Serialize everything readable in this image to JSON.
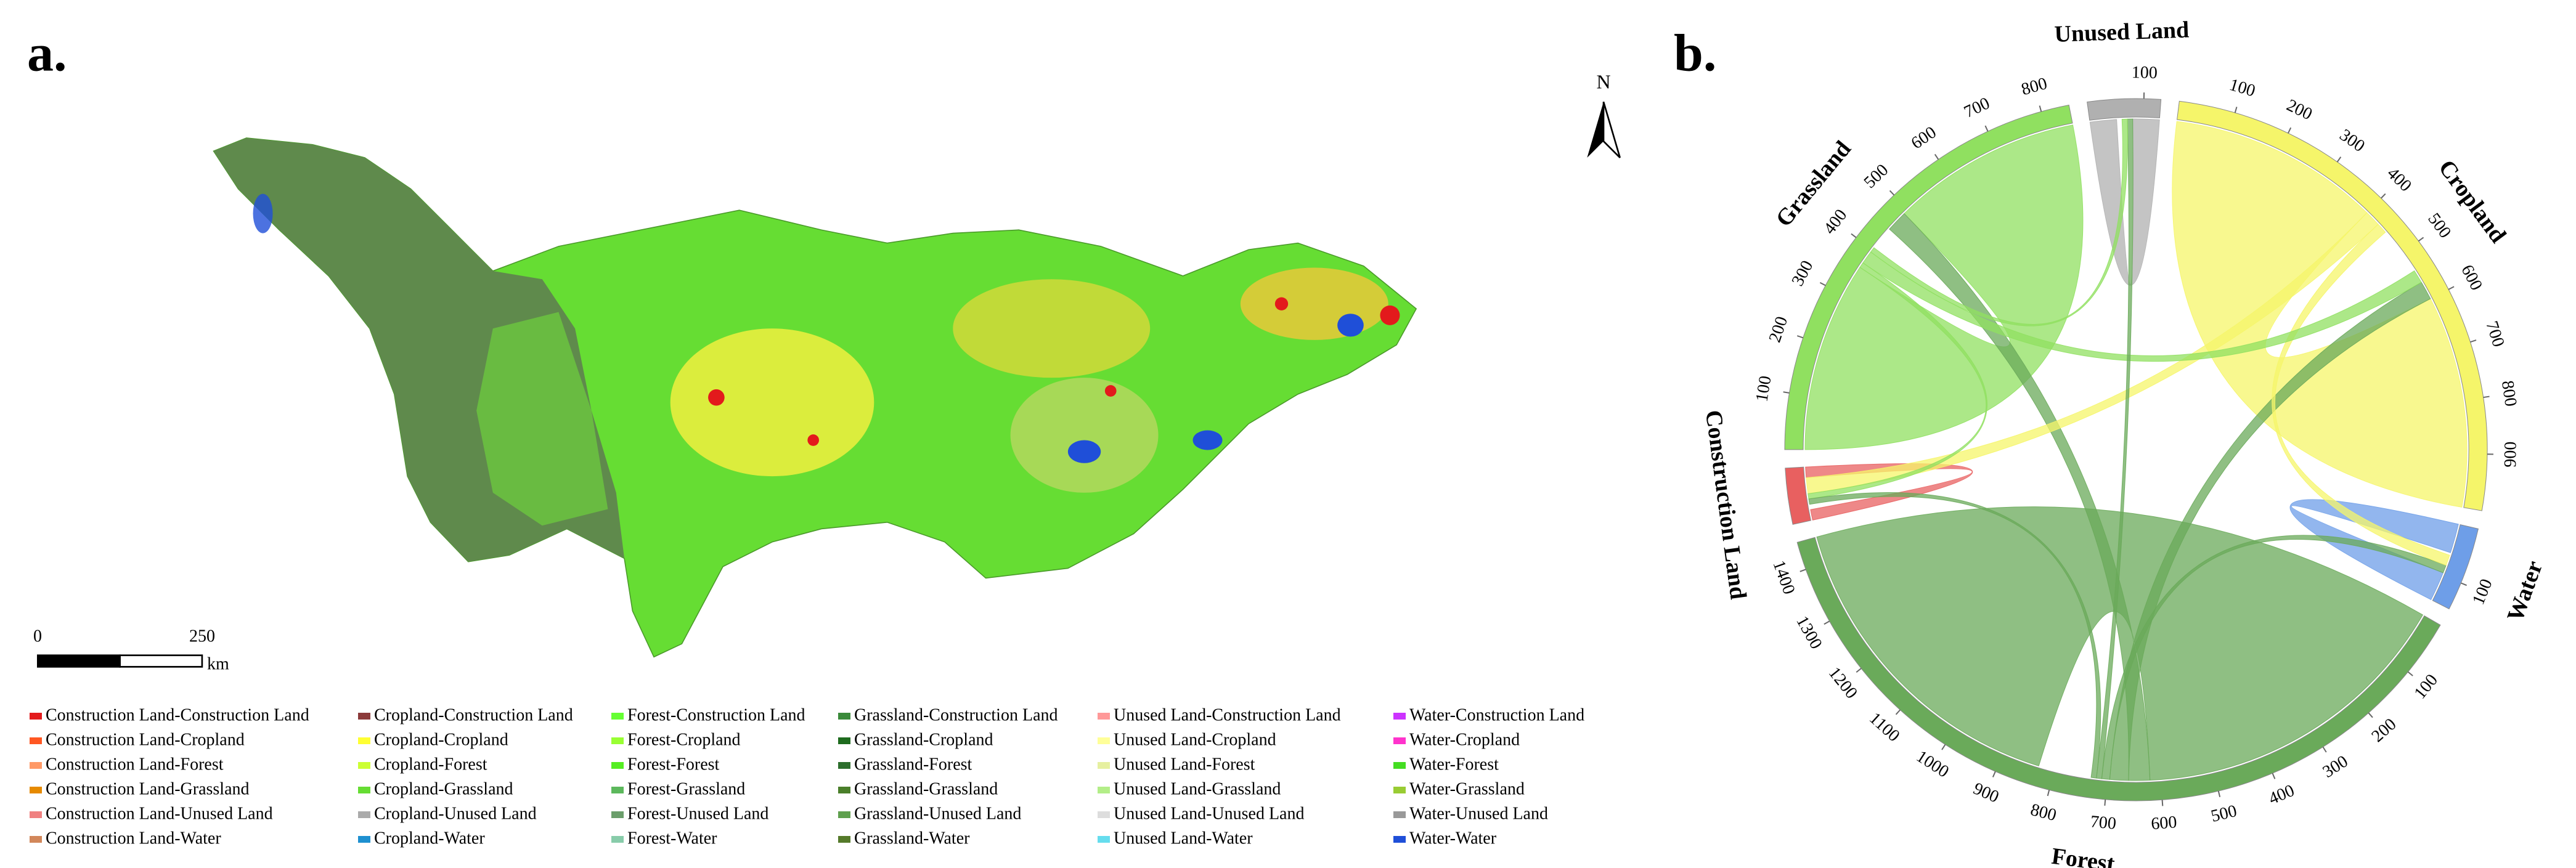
{
  "panels": {
    "a": "a.",
    "b": "b."
  },
  "map": {
    "north": "N",
    "scale_bar": {
      "ticks": [
        0,
        250
      ],
      "unit": "km"
    }
  },
  "legend": [
    {
      "label": "Construction Land-Construction Land",
      "color": "#e31a1c"
    },
    {
      "label": "Cropland-Construction Land",
      "color": "#8b3a3a"
    },
    {
      "label": "Forest-Construction Land",
      "color": "#66ff33"
    },
    {
      "label": "Grassland-Construction Land",
      "color": "#3a8a3a"
    },
    {
      "label": "Unused Land-Construction Land",
      "color": "#ff9999"
    },
    {
      "label": "Water-Construction Land",
      "color": "#cc33ff"
    },
    {
      "label": "Construction Land-Cropland",
      "color": "#ff5722"
    },
    {
      "label": "Cropland-Cropland",
      "color": "#ffff33"
    },
    {
      "label": "Forest-Cropland",
      "color": "#99ff33"
    },
    {
      "label": "Grassland-Cropland",
      "color": "#1e6b1e"
    },
    {
      "label": "Unused Land-Cropland",
      "color": "#ffff99"
    },
    {
      "label": "Water-Cropland",
      "color": "#ff33cc"
    },
    {
      "label": "Construction Land-Forest",
      "color": "#ff9966"
    },
    {
      "label": "Cropland-Forest",
      "color": "#ccff33"
    },
    {
      "label": "Forest-Forest",
      "color": "#55ee22"
    },
    {
      "label": "Grassland-Forest",
      "color": "#2d6e2d"
    },
    {
      "label": "Unused Land-Forest",
      "color": "#e6f0a0"
    },
    {
      "label": "Water-Forest",
      "color": "#44dd22"
    },
    {
      "label": "Construction Land-Grassland",
      "color": "#e68a00"
    },
    {
      "label": "Cropland-Grassland",
      "color": "#66dd33"
    },
    {
      "label": "Forest-Grassland",
      "color": "#5cb85c"
    },
    {
      "label": "Grassland-Grassland",
      "color": "#4a7f2a"
    },
    {
      "label": "Unused Land-Grassland",
      "color": "#b3ee88"
    },
    {
      "label": "Water-Grassland",
      "color": "#99cc33"
    },
    {
      "label": "Construction Land-Unused Land",
      "color": "#f08080"
    },
    {
      "label": "Cropland-Unused Land",
      "color": "#aaaaaa"
    },
    {
      "label": "Forest-Unused Land",
      "color": "#6b9e6b"
    },
    {
      "label": "Grassland-Unused Land",
      "color": "#5fa04e"
    },
    {
      "label": "Unused Land-Unused Land",
      "color": "#dddddd"
    },
    {
      "label": "Water-Unused Land",
      "color": "#999999"
    },
    {
      "label": "Construction Land-Water",
      "color": "#d2875a"
    },
    {
      "label": "Cropland-Water",
      "color": "#1e90d0"
    },
    {
      "label": "Forest-Water",
      "color": "#88ccaa"
    },
    {
      "label": "Grassland-Water",
      "color": "#557a2a"
    },
    {
      "label": "Unused Land-Water",
      "color": "#66ddee"
    },
    {
      "label": "Water-Water",
      "color": "#1f4fd8"
    }
  ],
  "chord": {
    "groups": [
      {
        "label": "Unused Land",
        "color": "#b0b0b0",
        "value": 130,
        "ticks": [
          100
        ]
      },
      {
        "label": "Cropland",
        "color": "#f5f56a",
        "value": 1000,
        "ticks": [
          100,
          200,
          300,
          400,
          500,
          600,
          700,
          800,
          900
        ]
      },
      {
        "label": "Water",
        "color": "#6e9ee8",
        "value": 150,
        "ticks": [
          100
        ]
      },
      {
        "label": "Forest",
        "color": "#6aaa5a",
        "value": 1450,
        "ticks": [
          100,
          200,
          300,
          400,
          500,
          600,
          700,
          800,
          900,
          1000,
          1100,
          1200,
          1300,
          1400
        ]
      },
      {
        "label": "Construction Land",
        "color": "#e86060",
        "value": 100
      },
      {
        "label": "Grassland",
        "color": "#90e060",
        "value": 850,
        "ticks": [
          100,
          200,
          300,
          400,
          500,
          600,
          700,
          800
        ]
      }
    ],
    "flows": [
      {
        "from": 3,
        "to": 3,
        "value": 620
      },
      {
        "from": 1,
        "to": 1,
        "value": 400
      },
      {
        "from": 5,
        "to": 5,
        "value": 360
      },
      {
        "from": 0,
        "to": 0,
        "value": 50
      },
      {
        "from": 2,
        "to": 2,
        "value": 55
      },
      {
        "from": 4,
        "to": 4,
        "value": 20
      },
      {
        "from": 3,
        "to": 5,
        "value": 40
      },
      {
        "from": 3,
        "to": 1,
        "value": 35
      },
      {
        "from": 1,
        "to": 4,
        "value": 30
      },
      {
        "from": 3,
        "to": 2,
        "value": 15
      },
      {
        "from": 1,
        "to": 2,
        "value": 20
      },
      {
        "from": 5,
        "to": 4,
        "value": 10
      },
      {
        "from": 5,
        "to": 1,
        "value": 25
      },
      {
        "from": 3,
        "to": 0,
        "value": 10
      },
      {
        "from": 5,
        "to": 0,
        "value": 10
      },
      {
        "from": 3,
        "to": 4,
        "value": 10
      }
    ]
  }
}
